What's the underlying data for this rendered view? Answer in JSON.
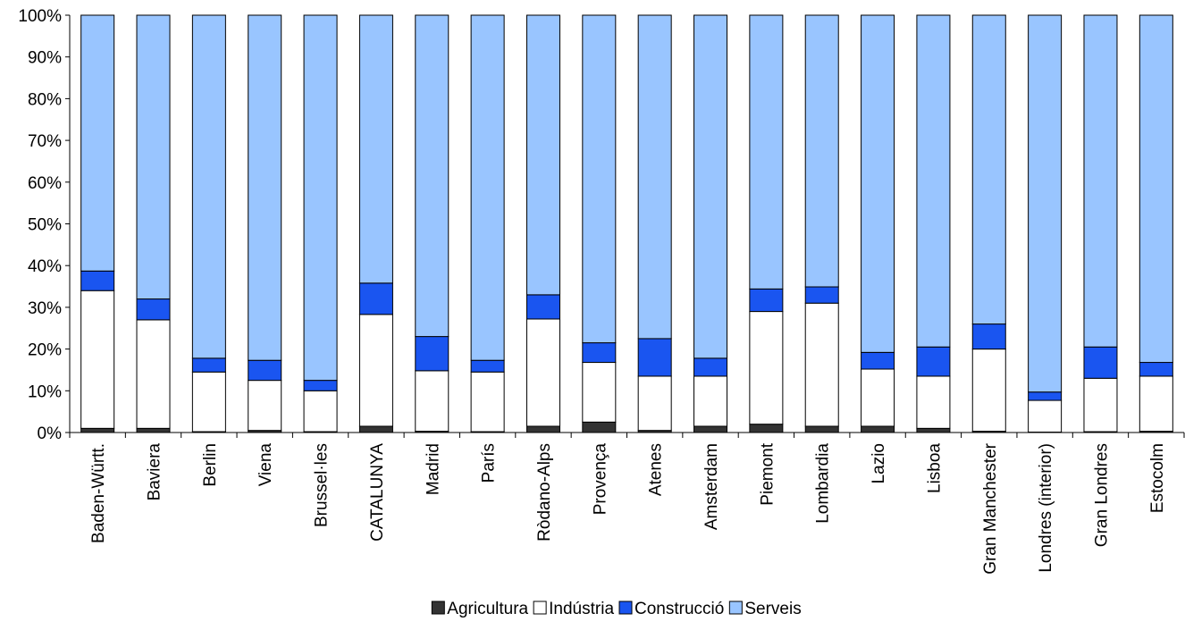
{
  "chart_data": {
    "type": "bar",
    "stacked": true,
    "percent_stacked": true,
    "title": "",
    "xlabel": "",
    "ylabel": "",
    "ylim": [
      0,
      100
    ],
    "y_ticks": [
      "0%",
      "10%",
      "20%",
      "30%",
      "40%",
      "50%",
      "60%",
      "70%",
      "80%",
      "90%",
      "100%"
    ],
    "grid": false,
    "legend_position": "bottom",
    "categories": [
      "Baden-Württ.",
      "Baviera",
      "Berlin",
      "Viena",
      "Brussel·les",
      "CATALUNYA",
      "Madrid",
      "París",
      "Ròdano-Alps",
      "Provença",
      "Atenes",
      "Amsterdam",
      "Piemont",
      "Lombardia",
      "Lazio",
      "Lisboa",
      "Gran Manchester",
      "Londres (interior)",
      "Gran Londres",
      "Estocolm"
    ],
    "series": [
      {
        "name": "Agricultura",
        "color": "#333333",
        "values": [
          1.0,
          1.0,
          0.2,
          0.5,
          0.2,
          1.5,
          0.3,
          0.2,
          1.5,
          2.5,
          0.5,
          1.5,
          2.0,
          1.5,
          1.5,
          1.0,
          0.3,
          0.1,
          0.2,
          0.3
        ]
      },
      {
        "name": "Indústria",
        "color": "#ffffff",
        "values": [
          33.0,
          26.0,
          14.3,
          12.0,
          9.8,
          26.8,
          14.5,
          14.3,
          25.7,
          14.3,
          13.0,
          12.0,
          27.0,
          29.5,
          13.7,
          12.5,
          19.7,
          7.6,
          12.8,
          13.2
        ]
      },
      {
        "name": "Construcció",
        "color": "#1a55f0",
        "values": [
          4.7,
          5.0,
          3.3,
          4.8,
          2.5,
          7.5,
          8.2,
          2.8,
          5.8,
          4.7,
          9.0,
          4.3,
          5.4,
          3.9,
          4.0,
          7.0,
          6.0,
          2.0,
          7.5,
          3.3
        ]
      },
      {
        "name": "Serveis",
        "color": "#99c5ff",
        "values": [
          61.3,
          68.0,
          82.2,
          82.7,
          87.5,
          64.2,
          77.0,
          82.7,
          67.0,
          78.5,
          77.5,
          82.2,
          65.6,
          65.1,
          80.8,
          79.5,
          74.0,
          90.3,
          79.5,
          83.2
        ]
      }
    ]
  }
}
